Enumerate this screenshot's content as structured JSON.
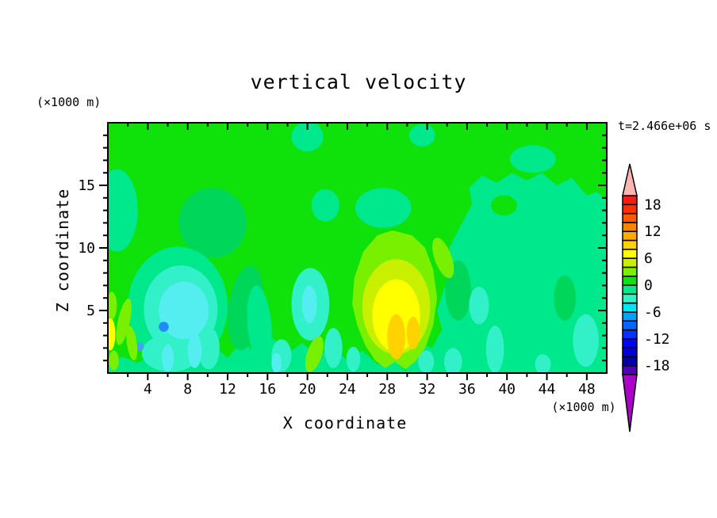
{
  "title": "vertical velocity",
  "time_label": "t=2.466e+06 s",
  "axes": {
    "x": {
      "label": "X coordinate",
      "unit": "(×1000 m)",
      "min": 0,
      "max": 50,
      "major_ticks": [
        4,
        8,
        12,
        16,
        20,
        24,
        28,
        32,
        36,
        40,
        44,
        48
      ],
      "minor_step": 2
    },
    "z": {
      "label": "Z coordinate",
      "unit": "(×1000 m)",
      "min": 0,
      "max": 20,
      "major_ticks": [
        5,
        10,
        15
      ],
      "minor_step": 1
    }
  },
  "colorbar": {
    "labels": [
      18,
      12,
      6,
      0,
      -6,
      -12,
      -18
    ],
    "level_min": -20,
    "level_max": 20,
    "level_step": 2,
    "colors_bottom_to_top": [
      "#5000b4",
      "#0000aa",
      "#0000d2",
      "#0000ff",
      "#0032ff",
      "#0064ff",
      "#00a0ff",
      "#00e6f0",
      "#32f0c8",
      "#00e88c",
      "#0fe10a",
      "#78f000",
      "#c8f000",
      "#ffff00",
      "#ffd200",
      "#ffaa00",
      "#ff8200",
      "#ff5a00",
      "#ff3200",
      "#f51e14"
    ],
    "over_color": "#ffb4b4",
    "under_color": "#aa00c8"
  },
  "chart_data": {
    "type": "contour-fill",
    "field": "vertical velocity",
    "time": "t=2.466e+06 s",
    "x_range": [
      0,
      50
    ],
    "z_range": [
      0,
      20
    ],
    "contour_interval": 2,
    "background_band": [
      0,
      2
    ],
    "palette": {
      "bright_green": "#0fe10a",
      "spring_green": "#00e88c",
      "medium_green": "#00d75a",
      "aquamarine": "#32f0c8",
      "light_cyan": "#55eef0",
      "blue": "#1e8cff",
      "sky_blue": "#46a0ff",
      "chartreuse": "#78f000",
      "yellow_green": "#c8f000",
      "yellow": "#ffff00",
      "gold": "#ffd200"
    },
    "features": [
      {
        "id": "region-right-downdraft",
        "shape": "poly",
        "color": "spring_green",
        "pts": [
          [
            30,
            0
          ],
          [
            29.5,
            1
          ],
          [
            31,
            2.5
          ],
          [
            32.5,
            2
          ],
          [
            33.5,
            3.5
          ],
          [
            33,
            5
          ],
          [
            33.8,
            7
          ],
          [
            34.5,
            8.5
          ],
          [
            34.2,
            10
          ],
          [
            35.5,
            12
          ],
          [
            36.5,
            13.5
          ],
          [
            36.2,
            14.8
          ],
          [
            37.5,
            15.8
          ],
          [
            39,
            15.2
          ],
          [
            40.5,
            16
          ],
          [
            42,
            15.4
          ],
          [
            43.5,
            16
          ],
          [
            45,
            15
          ],
          [
            46.5,
            15.6
          ],
          [
            48,
            14.2
          ],
          [
            49,
            14.5
          ],
          [
            50,
            13.8
          ],
          [
            50,
            0
          ]
        ]
      },
      {
        "id": "region-bottom-strip",
        "shape": "poly",
        "color": "spring_green",
        "pts": [
          [
            0,
            0
          ],
          [
            0,
            1
          ],
          [
            1.5,
            1.3
          ],
          [
            3,
            0.8
          ],
          [
            4.5,
            1.5
          ],
          [
            6,
            0.9
          ],
          [
            7.5,
            1.8
          ],
          [
            9,
            1
          ],
          [
            10.5,
            2.2
          ],
          [
            12,
            1.2
          ],
          [
            13.5,
            2.6
          ],
          [
            15,
            1.4
          ],
          [
            16.5,
            2.8
          ],
          [
            18,
            1.6
          ],
          [
            19.5,
            2.4
          ],
          [
            21,
            1.3
          ],
          [
            22.5,
            2.2
          ],
          [
            24,
            1
          ],
          [
            25.5,
            1.8
          ],
          [
            27,
            0.7
          ],
          [
            28.5,
            1.2
          ],
          [
            30,
            0
          ]
        ]
      },
      {
        "id": "blob-green-upperleft",
        "shape": "ellipse",
        "color": "medium_green",
        "cx": 10.5,
        "cz": 12,
        "rx": 3.4,
        "rz": 2.8,
        "rot": -15
      },
      {
        "id": "blob-green-midleft",
        "shape": "ellipse",
        "color": "medium_green",
        "cx": 13.8,
        "cz": 5.2,
        "rx": 1.7,
        "rz": 3.4,
        "rot": 8
      },
      {
        "id": "region-left-downdraft",
        "shape": "ellipse",
        "color": "spring_green",
        "cx": 7,
        "cz": 5.3,
        "rx": 5,
        "rz": 4.8
      },
      {
        "id": "patch-spring-topcenter",
        "shape": "ellipse",
        "color": "spring_green",
        "cx": 21.8,
        "cz": 13.4,
        "rx": 1.4,
        "rz": 1.3
      },
      {
        "id": "patch-spring-topnotch",
        "shape": "ellipse",
        "color": "spring_green",
        "cx": 20,
        "cz": 18.9,
        "rx": 1.6,
        "rz": 1.2
      },
      {
        "id": "patch-spring-topright",
        "shape": "ellipse",
        "color": "spring_green",
        "cx": 42.6,
        "cz": 17.1,
        "rx": 2.3,
        "rz": 1.1
      },
      {
        "id": "patch-spring-leftedge",
        "shape": "ellipse",
        "color": "spring_green",
        "cx": 0.9,
        "cz": 13,
        "rx": 2.1,
        "rz": 3.3
      },
      {
        "id": "streak-spring-midleft",
        "shape": "ellipse",
        "color": "spring_green",
        "cx": 15.2,
        "cz": 3.8,
        "rx": 1.2,
        "rz": 3.2,
        "rot": -5
      },
      {
        "id": "patch-spring-right",
        "shape": "ellipse",
        "color": "spring_green",
        "cx": 36.6,
        "cz": 9.6,
        "rx": 1,
        "rz": 0.9
      },
      {
        "id": "patch-spring-topmid",
        "shape": "ellipse",
        "color": "spring_green",
        "cx": 31.5,
        "cz": 19,
        "rx": 1.3,
        "rz": 0.9
      },
      {
        "id": "cap-spring-center",
        "shape": "ellipse",
        "color": "spring_green",
        "cx": 27.6,
        "cz": 13.2,
        "rx": 2.8,
        "rz": 1.6
      },
      {
        "id": "column-green-right",
        "shape": "ellipse",
        "color": "medium_green",
        "cx": 35.1,
        "cz": 6.6,
        "rx": 1.3,
        "rz": 2.4
      },
      {
        "id": "column-green-farright",
        "shape": "ellipse",
        "color": "medium_green",
        "cx": 45.8,
        "cz": 6,
        "rx": 1.1,
        "rz": 1.8
      },
      {
        "id": "island-bright-right",
        "shape": "ellipse",
        "color": "bright_green",
        "cx": 39.7,
        "cz": 13.4,
        "rx": 1.3,
        "rz": 0.8
      },
      {
        "id": "blob-aqua-left",
        "shape": "ellipse",
        "color": "aquamarine",
        "cx": 7.3,
        "cz": 5.1,
        "rx": 3.7,
        "rz": 3.5
      },
      {
        "id": "streak-aqua-left-low",
        "shape": "ellipse",
        "color": "aquamarine",
        "cx": 6.3,
        "cz": 1.6,
        "rx": 2.9,
        "rz": 1.5
      },
      {
        "id": "streak-aqua-left2",
        "shape": "ellipse",
        "color": "aquamarine",
        "cx": 10.1,
        "cz": 2,
        "rx": 1.1,
        "rz": 1.7
      },
      {
        "id": "blob-aqua-center",
        "shape": "ellipse",
        "color": "aquamarine",
        "cx": 20.3,
        "cz": 5.5,
        "rx": 1.9,
        "rz": 2.9
      },
      {
        "id": "streak-aqua-c1",
        "shape": "ellipse",
        "color": "aquamarine",
        "cx": 17.4,
        "cz": 1.4,
        "rx": 1,
        "rz": 1.3
      },
      {
        "id": "streak-aqua-c2",
        "shape": "ellipse",
        "color": "aquamarine",
        "cx": 22.6,
        "cz": 2,
        "rx": 0.9,
        "rz": 1.6
      },
      {
        "id": "streak-aqua-c3",
        "shape": "ellipse",
        "color": "aquamarine",
        "cx": 24.6,
        "cz": 1.1,
        "rx": 0.7,
        "rz": 1
      },
      {
        "id": "patch-aqua-right-mid",
        "shape": "ellipse",
        "color": "aquamarine",
        "cx": 37.2,
        "cz": 5.4,
        "rx": 1,
        "rz": 1.5
      },
      {
        "id": "streak-aqua-right1",
        "shape": "ellipse",
        "color": "aquamarine",
        "cx": 38.8,
        "cz": 1.9,
        "rx": 0.9,
        "rz": 1.9
      },
      {
        "id": "streak-aqua-corner",
        "shape": "ellipse",
        "color": "aquamarine",
        "cx": 47.9,
        "cz": 2.6,
        "rx": 1.3,
        "rz": 2.1
      },
      {
        "id": "spot-aqua-right2",
        "shape": "ellipse",
        "color": "aquamarine",
        "cx": 43.6,
        "cz": 0.7,
        "rx": 0.8,
        "rz": 0.8
      },
      {
        "id": "core-cyan-left",
        "shape": "ellipse",
        "color": "light_cyan",
        "cx": 7.6,
        "cz": 5,
        "rx": 2.5,
        "rz": 2.3
      },
      {
        "id": "streak-cyan-l1",
        "shape": "ellipse",
        "color": "light_cyan",
        "cx": 8.7,
        "cz": 1.8,
        "rx": 0.7,
        "rz": 1.4
      },
      {
        "id": "streak-cyan-l2",
        "shape": "ellipse",
        "color": "light_cyan",
        "cx": 6,
        "cz": 1.2,
        "rx": 0.6,
        "rz": 1.1
      },
      {
        "id": "core-cyan-center",
        "shape": "ellipse",
        "color": "light_cyan",
        "cx": 20.2,
        "cz": 5.5,
        "rx": 0.75,
        "rz": 1.5
      },
      {
        "id": "spot-cyan-small",
        "shape": "ellipse",
        "color": "light_cyan",
        "cx": 16.9,
        "cz": 0.8,
        "rx": 0.5,
        "rz": 0.8
      },
      {
        "id": "dot-blue-1",
        "shape": "circle",
        "color": "blue",
        "cx": 5.6,
        "cz": 3.7,
        "r": 0.5
      },
      {
        "id": "dot-blue-2",
        "shape": "circle",
        "color": "sky_blue",
        "cx": 3.2,
        "cz": 2.1,
        "r": 0.4
      },
      {
        "id": "updraft-chartreuse",
        "shape": "poly",
        "color": "chartreuse",
        "pts": [
          [
            28.5,
            11.4
          ],
          [
            30.5,
            11
          ],
          [
            31.8,
            10
          ],
          [
            32.6,
            8.3
          ],
          [
            33,
            6
          ],
          [
            32.6,
            3.8
          ],
          [
            31.8,
            2
          ],
          [
            30.8,
            0.9
          ],
          [
            29.8,
            0.3
          ],
          [
            28.8,
            0.9
          ],
          [
            27.8,
            0.4
          ],
          [
            26.8,
            1
          ],
          [
            25.8,
            2.2
          ],
          [
            25,
            3.8
          ],
          [
            24.5,
            5.5
          ],
          [
            24.7,
            7.6
          ],
          [
            25.6,
            9.7
          ],
          [
            27,
            11
          ]
        ]
      },
      {
        "id": "arm-chartreuse",
        "shape": "ellipse",
        "color": "chartreuse",
        "cx": 33.6,
        "cz": 9.2,
        "rx": 0.85,
        "rz": 1.7,
        "rot": -20
      },
      {
        "id": "streak-chart-edge1",
        "shape": "ellipse",
        "color": "chartreuse",
        "cx": 1.6,
        "cz": 4.1,
        "rx": 0.6,
        "rz": 1.9,
        "rot": 12
      },
      {
        "id": "streak-chart-edge2",
        "shape": "ellipse",
        "color": "chartreuse",
        "cx": 2.4,
        "cz": 2.4,
        "rx": 0.5,
        "rz": 1.4,
        "rot": -8
      },
      {
        "id": "streak-chart-edge3",
        "shape": "ellipse",
        "color": "chartreuse",
        "cx": 0.4,
        "cz": 5.4,
        "rx": 0.5,
        "rz": 1.1
      },
      {
        "id": "streak-chart-center",
        "shape": "ellipse",
        "color": "chartreuse",
        "cx": 20.7,
        "cz": 1.5,
        "rx": 0.75,
        "rz": 1.5,
        "rot": 18
      },
      {
        "id": "streak-chart-corner",
        "shape": "ellipse",
        "color": "chartreuse",
        "cx": 0.6,
        "cz": 1,
        "rx": 0.5,
        "rz": 0.8
      },
      {
        "id": "spot-aqua-below-core1",
        "shape": "ellipse",
        "color": "aquamarine",
        "cx": 31.9,
        "cz": 0.9,
        "rx": 0.8,
        "rz": 0.9
      },
      {
        "id": "spot-aqua-below-core2",
        "shape": "ellipse",
        "color": "aquamarine",
        "cx": 34.6,
        "cz": 0.9,
        "rx": 0.9,
        "rz": 1.1
      },
      {
        "id": "updraft-yellowgreen",
        "shape": "ellipse",
        "color": "yellow_green",
        "cx": 28.9,
        "cz": 5.3,
        "rx": 3.4,
        "rz": 3.8
      },
      {
        "id": "updraft-yellow",
        "shape": "ellipse",
        "color": "yellow",
        "cx": 28.9,
        "cz": 4.6,
        "rx": 2.4,
        "rz": 2.9
      },
      {
        "id": "sliver-yellow-edge",
        "shape": "ellipse",
        "color": "yellow",
        "cx": 0.25,
        "cz": 3.1,
        "rx": 0.5,
        "rz": 1.3
      },
      {
        "id": "core-gold-1",
        "shape": "ellipse",
        "color": "gold",
        "cx": 28.9,
        "cz": 2.9,
        "rx": 0.9,
        "rz": 1.8
      },
      {
        "id": "core-gold-2",
        "shape": "ellipse",
        "color": "gold",
        "cx": 30.6,
        "cz": 3.2,
        "rx": 0.65,
        "rz": 1.3
      }
    ]
  }
}
